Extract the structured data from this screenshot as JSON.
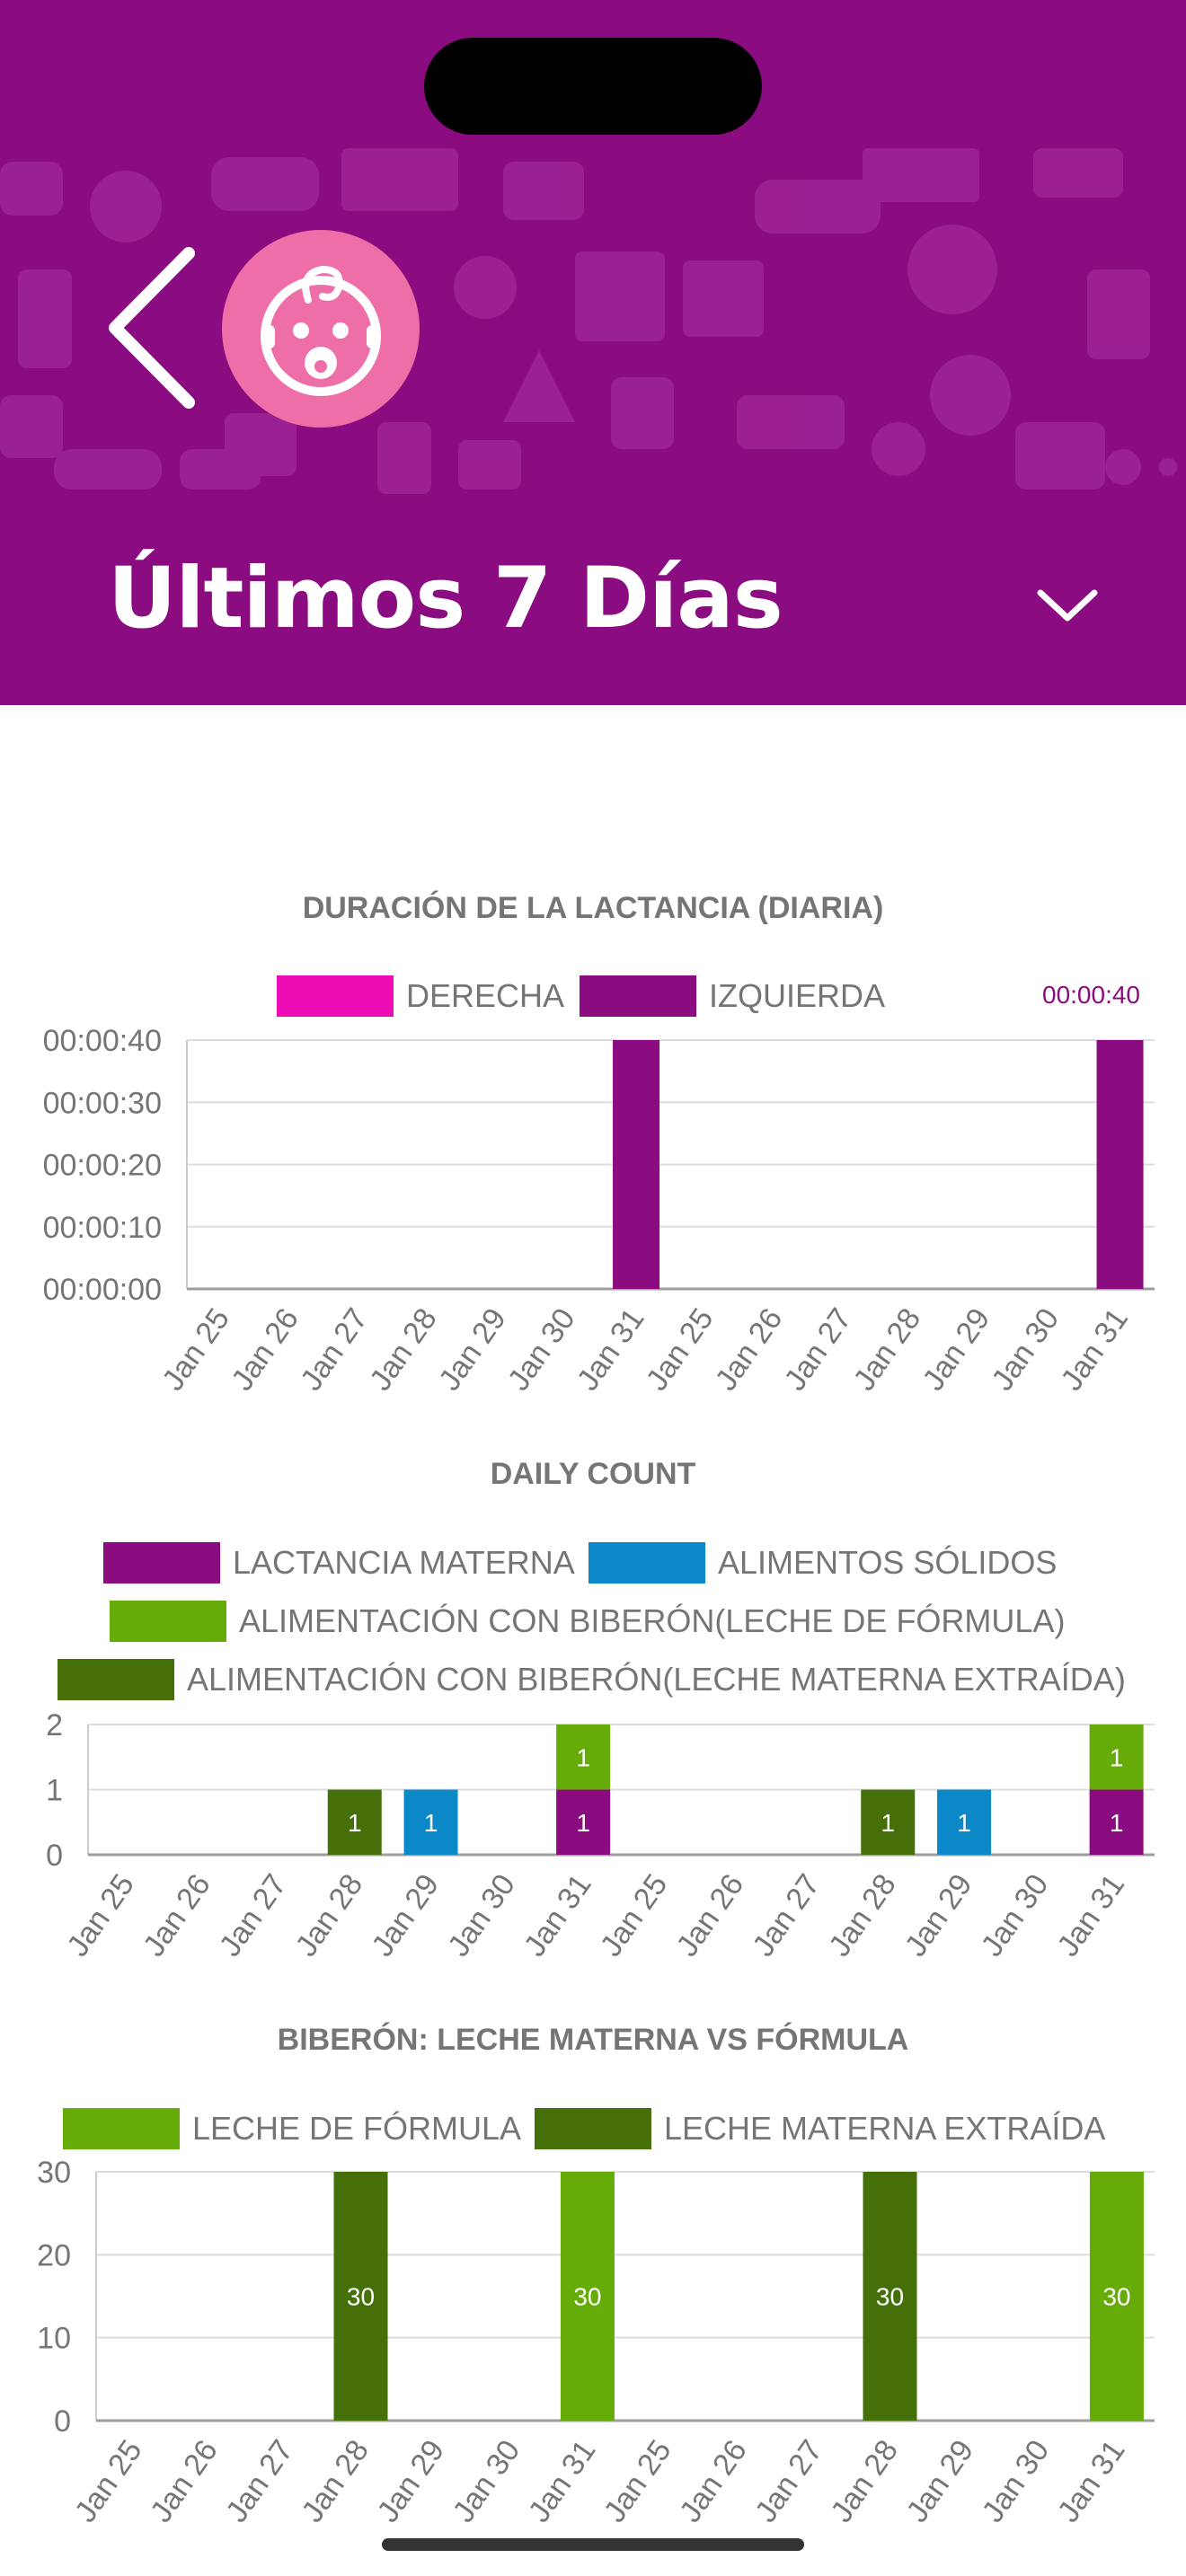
{
  "header": {
    "title": "Últimos 7 Días",
    "back_icon": "chevron-left-icon",
    "avatar_icon": "baby-face-icon",
    "dropdown_icon": "chevron-down-icon",
    "background_color": "#8a0c80"
  },
  "charts": {
    "duration": {
      "title": "DURACIÓN DE LA LACTANCIA (DIARIA)",
      "legend": [
        "DERECHA",
        "IZQUIERDA"
      ],
      "top_label": "00:00:40"
    },
    "count": {
      "title": "DAILY COUNT",
      "legend": [
        "LACTANCIA MATERNA",
        "ALIMENTOS SÓLIDOS",
        "ALIMENTACIÓN CON BIBERÓN(LECHE DE FÓRMULA)",
        "ALIMENTACIÓN CON BIBERÓN(LECHE MATERNA EXTRAÍDA)"
      ]
    },
    "bottle": {
      "title": "BIBERÓN: LECHE MATERNA VS FÓRMULA",
      "legend": [
        "LECHE DE FÓRMULA",
        "LECHE MATERNA EXTRAÍDA"
      ]
    }
  },
  "chart_data": [
    {
      "type": "bar",
      "title": "DURACIÓN DE LA LACTANCIA (DIARIA)",
      "categories": [
        "Jan 25",
        "Jan 26",
        "Jan 27",
        "Jan 28",
        "Jan 29",
        "Jan 30",
        "Jan 31",
        "Jan 25",
        "Jan 26",
        "Jan 27",
        "Jan 28",
        "Jan 29",
        "Jan 30",
        "Jan 31"
      ],
      "y_ticks": [
        "00:00:00",
        "00:00:10",
        "00:00:20",
        "00:00:30",
        "00:00:40"
      ],
      "ylim_seconds": [
        0,
        40
      ],
      "series": [
        {
          "name": "DERECHA",
          "color": "#ee0db4",
          "values": [
            0,
            0,
            0,
            0,
            0,
            0,
            0,
            0,
            0,
            0,
            0,
            0,
            0,
            0
          ]
        },
        {
          "name": "IZQUIERDA",
          "color": "#8a0c80",
          "values": [
            0,
            0,
            0,
            0,
            0,
            0,
            40,
            0,
            0,
            0,
            0,
            0,
            0,
            40
          ]
        }
      ],
      "legend_position": "top",
      "grid": true
    },
    {
      "type": "bar",
      "stacked": true,
      "title": "DAILY COUNT",
      "categories": [
        "Jan 25",
        "Jan 26",
        "Jan 27",
        "Jan 28",
        "Jan 29",
        "Jan 30",
        "Jan 31",
        "Jan 25",
        "Jan 26",
        "Jan 27",
        "Jan 28",
        "Jan 29",
        "Jan 30",
        "Jan 31"
      ],
      "y_ticks": [
        "0",
        "1",
        "2"
      ],
      "ylim": [
        0,
        2
      ],
      "series": [
        {
          "name": "LACTANCIA MATERNA",
          "color": "#8a0c80",
          "values": [
            0,
            0,
            0,
            0,
            0,
            0,
            1,
            0,
            0,
            0,
            0,
            0,
            0,
            1
          ]
        },
        {
          "name": "ALIMENTOS SÓLIDOS",
          "color": "#0b88c8",
          "values": [
            0,
            0,
            0,
            0,
            1,
            0,
            0,
            0,
            0,
            0,
            0,
            1,
            0,
            0
          ]
        },
        {
          "name": "ALIMENTACIÓN CON BIBERÓN(LECHE DE FÓRMULA)",
          "color": "#66ac08",
          "values": [
            0,
            0,
            0,
            0,
            0,
            0,
            1,
            0,
            0,
            0,
            0,
            0,
            0,
            1
          ]
        },
        {
          "name": "ALIMENTACIÓN CON BIBERÓN(LECHE MATERNA EXTRAÍDA)",
          "color": "#457009",
          "values": [
            0,
            0,
            0,
            1,
            0,
            0,
            0,
            0,
            0,
            0,
            1,
            0,
            0,
            0
          ]
        }
      ],
      "legend_position": "top",
      "grid": true
    },
    {
      "type": "bar",
      "title": "BIBERÓN: LECHE MATERNA VS FÓRMULA",
      "categories": [
        "Jan 25",
        "Jan 26",
        "Jan 27",
        "Jan 28",
        "Jan 29",
        "Jan 30",
        "Jan 31",
        "Jan 25",
        "Jan 26",
        "Jan 27",
        "Jan 28",
        "Jan 29",
        "Jan 30",
        "Jan 31"
      ],
      "y_ticks": [
        "0",
        "10",
        "20",
        "30"
      ],
      "ylim": [
        0,
        30
      ],
      "series": [
        {
          "name": "LECHE DE FÓRMULA",
          "color": "#66ac08",
          "values": [
            0,
            0,
            0,
            0,
            0,
            0,
            30,
            0,
            0,
            0,
            0,
            0,
            0,
            30
          ]
        },
        {
          "name": "LECHE MATERNA EXTRAÍDA",
          "color": "#457009",
          "values": [
            0,
            0,
            0,
            30,
            0,
            0,
            0,
            0,
            0,
            0,
            30,
            0,
            0,
            0
          ]
        }
      ],
      "legend_position": "top",
      "grid": true
    }
  ]
}
